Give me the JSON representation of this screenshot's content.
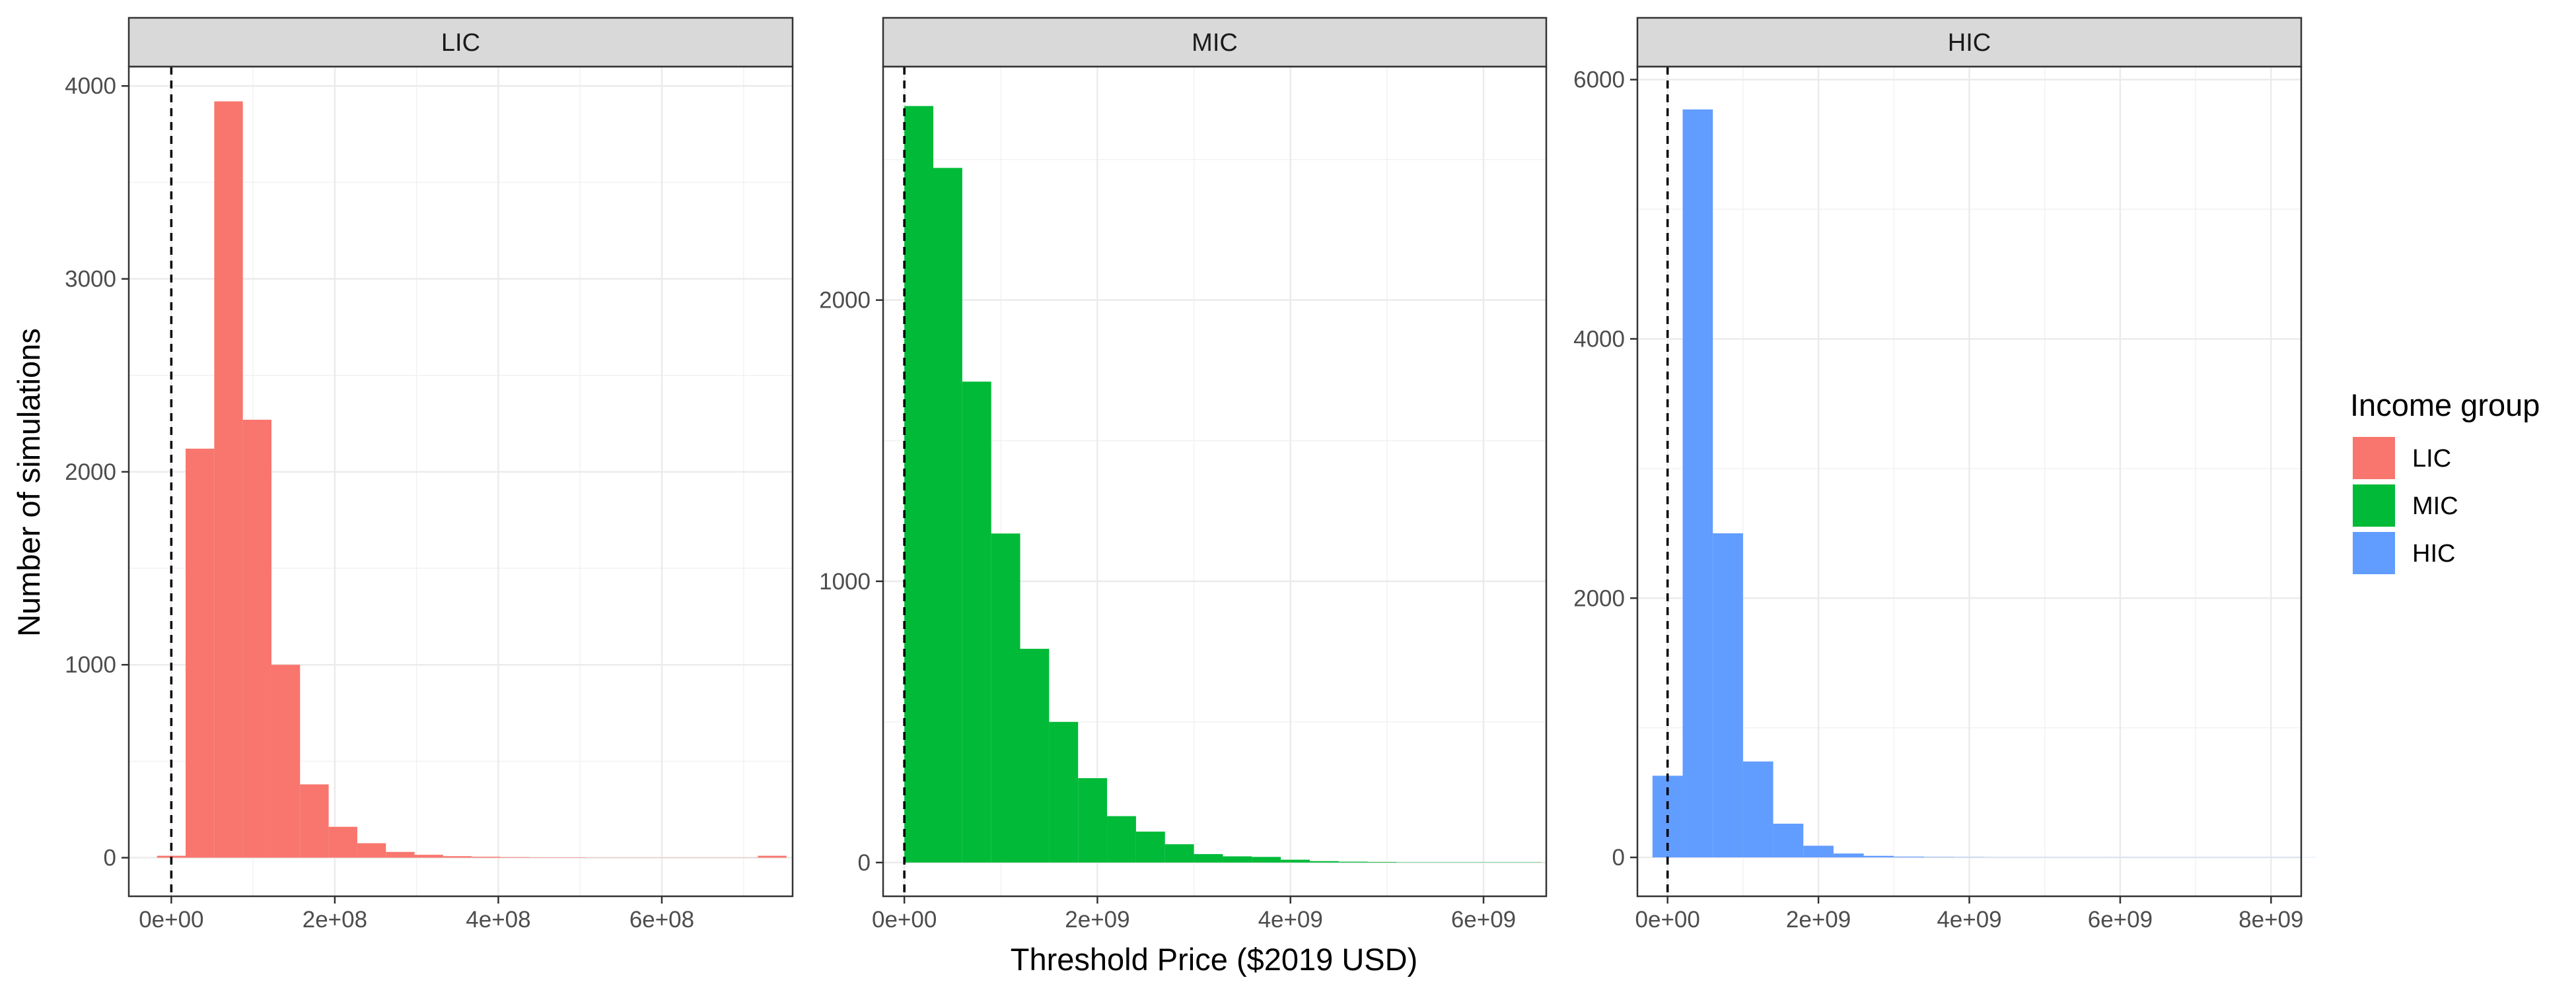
{
  "chart_data": {
    "type": "bar",
    "subtype": "faceted-histogram",
    "ylabel": "Number of simulations",
    "xlabel": "Threshold Price ($2019 USD)",
    "reference_line": {
      "x": 0,
      "style": "dashed",
      "color": "#000000"
    },
    "grid": true,
    "legend": {
      "title": "Income group",
      "placement": "right",
      "entries": [
        {
          "label": "LIC",
          "color": "#F8766D"
        },
        {
          "label": "MIC",
          "color": "#00BA38"
        },
        {
          "label": "HIC",
          "color": "#619CFF"
        }
      ]
    },
    "facets": [
      {
        "label": "LIC",
        "color": "#F8766D",
        "xlim": [
          -52000000,
          760000000
        ],
        "ylim": [
          -200,
          4100
        ],
        "x_ticks": [
          0,
          200000000,
          400000000,
          600000000
        ],
        "x_tick_labels": [
          "0e+00",
          "2e+08",
          "4e+08",
          "6e+08"
        ],
        "y_ticks": [
          0,
          1000,
          2000,
          3000,
          4000
        ],
        "y_tick_labels": [
          "0",
          "1000",
          "2000",
          "3000",
          "4000"
        ],
        "bin_start": -17500000,
        "bin_width": 35000000,
        "values": [
          10,
          2120,
          3920,
          2270,
          1000,
          380,
          160,
          75,
          30,
          15,
          8,
          5,
          3,
          2,
          2,
          1,
          1,
          1,
          1,
          1,
          1,
          10
        ]
      },
      {
        "label": "MIC",
        "color": "#00BA38",
        "xlim": [
          -220000000,
          6650000000
        ],
        "ylim": [
          -120,
          2830
        ],
        "x_ticks": [
          0,
          2000000000,
          4000000000,
          6000000000
        ],
        "x_tick_labels": [
          "0e+00",
          "2e+09",
          "4e+09",
          "6e+09"
        ],
        "y_ticks": [
          0,
          1000,
          2000
        ],
        "y_tick_labels": [
          "0",
          "1000",
          "2000"
        ],
        "bin_start": 0,
        "bin_width": 300000000,
        "values": [
          2690,
          2470,
          1710,
          1170,
          760,
          500,
          300,
          165,
          110,
          65,
          30,
          22,
          20,
          10,
          5,
          3,
          2,
          1,
          1,
          1,
          1,
          1
        ]
      },
      {
        "label": "HIC",
        "color": "#619CFF",
        "xlim": [
          -400000000,
          8400000000
        ],
        "ylim": [
          -300,
          6100
        ],
        "x_ticks": [
          0,
          2000000000,
          4000000000,
          6000000000,
          8000000000
        ],
        "x_tick_labels": [
          "0e+00",
          "2e+09",
          "4e+09",
          "6e+09",
          "8e+09"
        ],
        "y_ticks": [
          0,
          2000,
          4000,
          6000
        ],
        "y_tick_labels": [
          "0",
          "2000",
          "4000",
          "6000"
        ],
        "bin_start": -200000000,
        "bin_width": 400000000,
        "values": [
          630,
          5770,
          2500,
          740,
          260,
          90,
          30,
          12,
          6,
          3,
          2,
          1,
          1,
          1,
          1,
          1,
          1,
          1,
          1,
          1,
          1,
          1
        ]
      }
    ]
  }
}
